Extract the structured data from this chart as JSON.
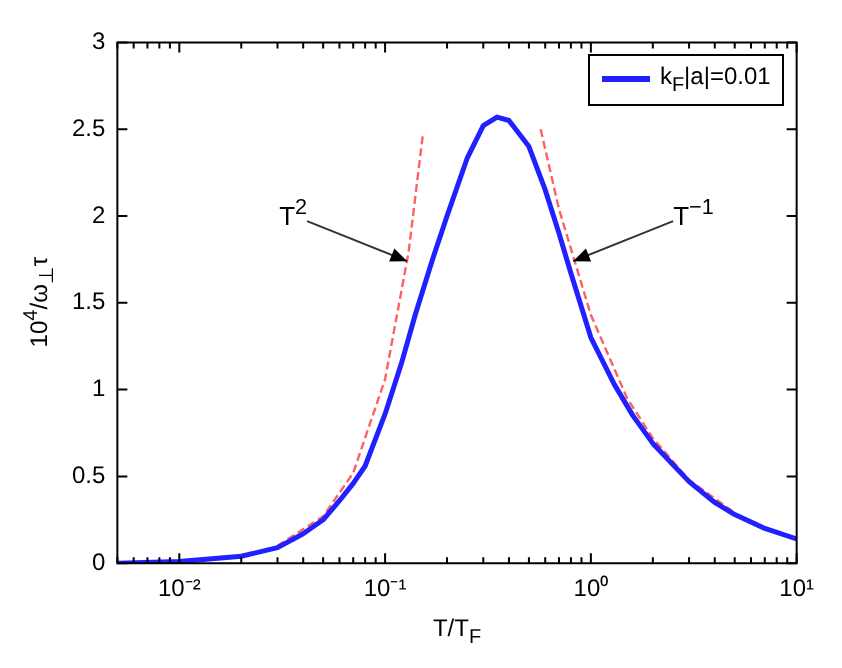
{
  "chart_data": {
    "type": "line",
    "xlabel": "T/T$_{F}$",
    "ylabel": "10$^{4}$/ω$_{⊥}$τ",
    "log": "x",
    "xlim": [
      0.005,
      10
    ],
    "ylim": [
      0,
      3
    ],
    "xticks": [
      {
        "value": 0.005,
        "label": null
      },
      {
        "value": 0.006,
        "label": null
      },
      {
        "value": 0.007,
        "label": null
      },
      {
        "value": 0.008,
        "label": null
      },
      {
        "value": 0.009,
        "label": null
      },
      {
        "value": 0.01,
        "label": "10⁻²"
      },
      {
        "value": 0.02,
        "label": null
      },
      {
        "value": 0.03,
        "label": null
      },
      {
        "value": 0.04,
        "label": null
      },
      {
        "value": 0.05,
        "label": null
      },
      {
        "value": 0.06,
        "label": null
      },
      {
        "value": 0.07,
        "label": null
      },
      {
        "value": 0.08,
        "label": null
      },
      {
        "value": 0.09,
        "label": null
      },
      {
        "value": 0.1,
        "label": "10⁻¹"
      },
      {
        "value": 0.2,
        "label": null
      },
      {
        "value": 0.3,
        "label": null
      },
      {
        "value": 0.4,
        "label": null
      },
      {
        "value": 0.5,
        "label": null
      },
      {
        "value": 0.6,
        "label": null
      },
      {
        "value": 0.7,
        "label": null
      },
      {
        "value": 0.8,
        "label": null
      },
      {
        "value": 0.9,
        "label": null
      },
      {
        "value": 1,
        "label": "10⁰"
      },
      {
        "value": 2,
        "label": null
      },
      {
        "value": 3,
        "label": null
      },
      {
        "value": 4,
        "label": null
      },
      {
        "value": 5,
        "label": null
      },
      {
        "value": 6,
        "label": null
      },
      {
        "value": 7,
        "label": null
      },
      {
        "value": 8,
        "label": null
      },
      {
        "value": 9,
        "label": null
      },
      {
        "value": 10,
        "label": "10¹"
      }
    ],
    "yticks": [
      0,
      0.5,
      1,
      1.5,
      2,
      2.5,
      3
    ],
    "grid": false,
    "legend": "top right",
    "marker": "none",
    "series": [
      {
        "name": "k$_{F}$|a|=0.01",
        "color": "#2121ff",
        "line_style": "solid",
        "x": [
          0.005,
          0.01,
          0.02,
          0.03,
          0.04,
          0.05,
          0.06,
          0.07,
          0.08,
          0.1,
          0.12,
          0.14,
          0.17,
          0.2,
          0.25,
          0.3,
          0.35,
          0.4,
          0.5,
          0.6,
          0.7,
          0.8,
          1,
          1.3,
          1.6,
          2,
          3,
          4,
          5,
          7,
          10
        ],
        "values": [
          0,
          0.01,
          0.04,
          0.09,
          0.17,
          0.25,
          0.36,
          0.46,
          0.56,
          0.86,
          1.15,
          1.43,
          1.75,
          2.0,
          2.33,
          2.52,
          2.57,
          2.55,
          2.4,
          2.15,
          1.9,
          1.67,
          1.3,
          1.03,
          0.85,
          0.69,
          0.47,
          0.35,
          0.28,
          0.2,
          0.14
        ]
      },
      {
        "color": "#ff6060",
        "line_style": "dashed",
        "x": [
          0.03,
          0.05,
          0.07,
          0.1,
          0.13,
          0.153
        ],
        "values": [
          0.1,
          0.27,
          0.52,
          1.06,
          1.79,
          2.48
        ]
      },
      {
        "color": "#ff6060",
        "line_style": "dashed",
        "x": [
          0.57,
          0.7,
          1,
          1.5,
          2,
          3,
          5
        ],
        "values": [
          2.5,
          2.04,
          1.43,
          0.95,
          0.72,
          0.48,
          0.29
        ]
      }
    ],
    "annotations": [
      {
        "text": "T$^{2}$",
        "x": 0.128,
        "y": 1.74
      },
      {
        "text": "T$^{−1}$",
        "x": 0.82,
        "y": 1.74
      }
    ]
  }
}
